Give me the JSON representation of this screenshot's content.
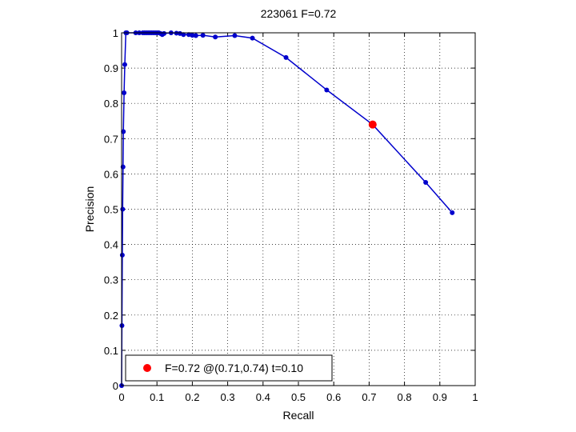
{
  "chart_data": {
    "type": "line",
    "title": "223061 F=0.72",
    "xlabel": "Recall",
    "ylabel": "Precision",
    "xlim": [
      0,
      1
    ],
    "ylim": [
      0,
      1
    ],
    "xticks": [
      0,
      0.1,
      0.2,
      0.3,
      0.4,
      0.5,
      0.6,
      0.7,
      0.8,
      0.9,
      1
    ],
    "yticks": [
      0,
      0.1,
      0.2,
      0.3,
      0.4,
      0.5,
      0.6,
      0.7,
      0.8,
      0.9,
      1
    ],
    "xtick_labels": [
      "0",
      "0.1",
      "0.2",
      "0.3",
      "0.4",
      "0.5",
      "0.6",
      "0.7",
      "0.8",
      "0.9",
      "1"
    ],
    "ytick_labels": [
      "0",
      "0.1",
      "0.2",
      "0.3",
      "0.4",
      "0.5",
      "0.6",
      "0.7",
      "0.8",
      "0.9",
      "1"
    ],
    "grid": true,
    "series": [
      {
        "color": "#0000cc",
        "x": [
          0.0,
          0.001,
          0.002,
          0.003,
          0.004,
          0.005,
          0.007,
          0.009,
          0.012,
          0.015,
          0.04,
          0.05,
          0.06,
          0.065,
          0.07,
          0.075,
          0.08,
          0.085,
          0.09,
          0.095,
          0.1,
          0.105,
          0.11,
          0.115,
          0.12,
          0.14,
          0.155,
          0.165,
          0.175,
          0.19,
          0.2,
          0.21,
          0.23,
          0.265,
          0.32,
          0.37,
          0.465,
          0.58,
          0.71,
          0.86,
          0.935
        ],
        "y": [
          0.0,
          0.17,
          0.37,
          0.5,
          0.62,
          0.72,
          0.83,
          0.91,
          1.0,
          1.0,
          1.0,
          1.0,
          1.0,
          1.0,
          1.0,
          1.0,
          1.0,
          1.0,
          1.0,
          1.0,
          1.0,
          1.0,
          0.998,
          0.995,
          0.998,
          1.0,
          0.999,
          0.998,
          0.995,
          0.995,
          0.993,
          0.992,
          0.993,
          0.988,
          0.992,
          0.985,
          0.93,
          0.838,
          0.74,
          0.576,
          0.49
        ]
      }
    ],
    "highlight_point": {
      "x": 0.71,
      "y": 0.74,
      "color": "#ff0000"
    },
    "legend": {
      "position": "bottom-left",
      "entries": [
        {
          "label": "F=0.72 @(0.71,0.74) t=0.10",
          "color": "#ff0000"
        }
      ]
    }
  }
}
